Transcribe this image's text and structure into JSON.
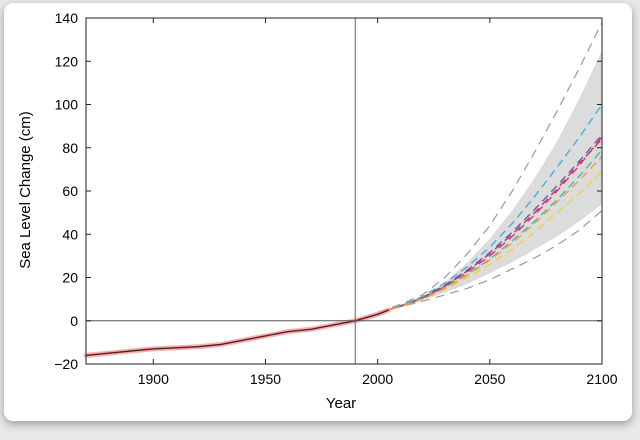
{
  "chart_data": {
    "type": "line",
    "xlabel": "Year",
    "ylabel": "Sea Level Change (cm)",
    "xlim": [
      1870,
      2100
    ],
    "ylim": [
      -20,
      140
    ],
    "xticks": [
      1900,
      1950,
      2000,
      2050,
      2100
    ],
    "yticks": [
      -20,
      0,
      20,
      40,
      60,
      80,
      100,
      120,
      140
    ],
    "reference_lines": {
      "x": 1990,
      "y": 0
    },
    "grid": false,
    "legend": "none",
    "observed": {
      "x": [
        1870,
        1880,
        1890,
        1900,
        1910,
        1920,
        1930,
        1940,
        1950,
        1960,
        1970,
        1980,
        1990,
        2000,
        2005
      ],
      "y": [
        -16,
        -15,
        -14,
        -13,
        -12.5,
        -12,
        -11,
        -9,
        -7,
        -5,
        -4,
        -2,
        0,
        3,
        5
      ]
    },
    "projection_x": [
      2000,
      2010,
      2020,
      2030,
      2040,
      2050,
      2060,
      2070,
      2080,
      2090,
      2100
    ],
    "envelope": {
      "lower": [
        3.5,
        6.5,
        9.5,
        13,
        17,
        22,
        27,
        33,
        39,
        46,
        54
      ],
      "upper": [
        4,
        7,
        11,
        18,
        27,
        38,
        51,
        66,
        83,
        103,
        125
      ]
    },
    "outer_bounds": {
      "lower": [
        3.5,
        6.5,
        9,
        12,
        15,
        19,
        24,
        29,
        35,
        42,
        51
      ],
      "upper": [
        4,
        7.5,
        12,
        20,
        31,
        44,
        60,
        78,
        97,
        117,
        138
      ]
    },
    "series": [
      {
        "values": [
          3.5,
          6.5,
          10,
          14.5,
          20,
          26,
          33,
          41,
          50,
          59,
          69
        ]
      },
      {
        "values": [
          3.5,
          6.5,
          10,
          15.5,
          21.5,
          28.5,
          37,
          46,
          56,
          67,
          79
        ]
      },
      {
        "values": [
          3.5,
          6.7,
          10.5,
          16,
          22.5,
          30,
          39,
          49,
          60,
          72,
          85
        ]
      },
      {
        "values": [
          3.5,
          6.8,
          10.8,
          16.5,
          23.5,
          31.5,
          41,
          51.5,
          62.5,
          74,
          86
        ]
      },
      {
        "values": [
          3.5,
          6.7,
          10.5,
          16,
          23,
          31,
          40,
          50,
          61,
          73,
          84
        ]
      },
      {
        "values": [
          3.5,
          6.9,
          11.2,
          17.5,
          25,
          34,
          45,
          57.5,
          71,
          85,
          100
        ]
      },
      {
        "values": [
          3.5,
          6.5,
          10,
          15,
          21,
          28,
          36,
          45,
          55,
          65,
          76
        ]
      }
    ],
    "colors": {
      "observed_raw": "#f2a7a0",
      "observed_smooth": "#e05060",
      "observed_trend": "#202020",
      "envelope": "#dcdcdc",
      "outer_bounds": "#9a9a9a",
      "series": [
        "#f0d040",
        "#40c0a0",
        "#e03080",
        "#6060c0",
        "#c04050",
        "#40b0e0",
        "#f0a040"
      ]
    }
  }
}
